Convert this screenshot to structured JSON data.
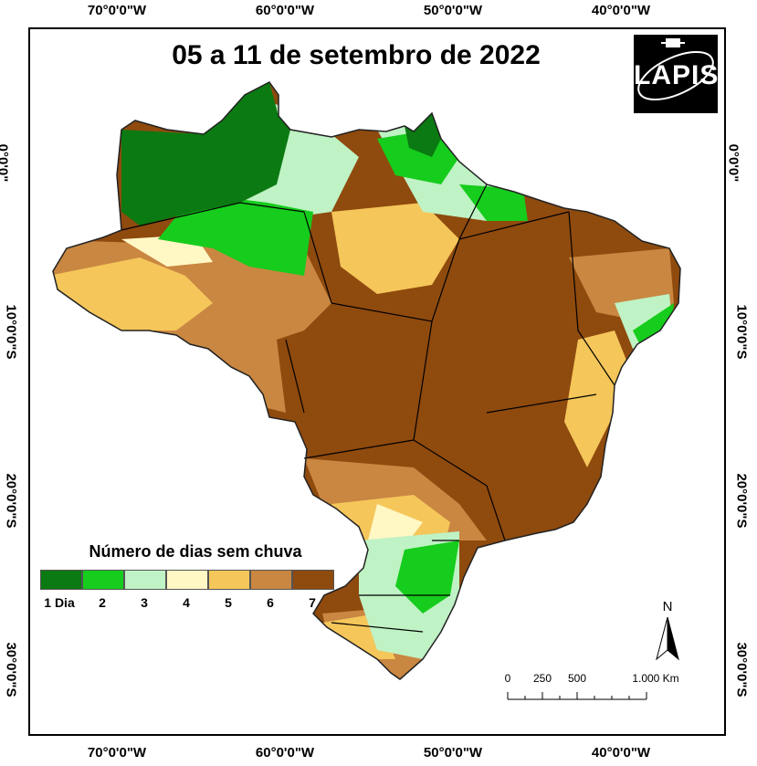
{
  "title": "05 a 11 de setembro de 2022",
  "logo": {
    "text": "LAPIS"
  },
  "coordinates": {
    "longitudes": [
      "70°0'0\"W",
      "60°0'0\"W",
      "50°0'0\"W",
      "40°0'0\"W"
    ],
    "latitudes": [
      "0°0'0\"",
      "10°0'0\"S",
      "20°0'0\"S",
      "30°0'0\"S"
    ]
  },
  "legend": {
    "title": "Número de dias sem chuva",
    "classes": [
      {
        "label": "1 Dia",
        "color": "#0b7a12"
      },
      {
        "label": "2",
        "color": "#16cc1c"
      },
      {
        "label": "3",
        "color": "#bff2c4"
      },
      {
        "label": "4",
        "color": "#fff7c4"
      },
      {
        "label": "5",
        "color": "#f5c65a"
      },
      {
        "label": "6",
        "color": "#c98742"
      },
      {
        "label": "7",
        "color": "#8f4a0e"
      }
    ]
  },
  "north_arrow": {
    "label": "N"
  },
  "scale_bar": {
    "ticks": [
      "0",
      "250",
      "500",
      "1.000 Km"
    ]
  }
}
